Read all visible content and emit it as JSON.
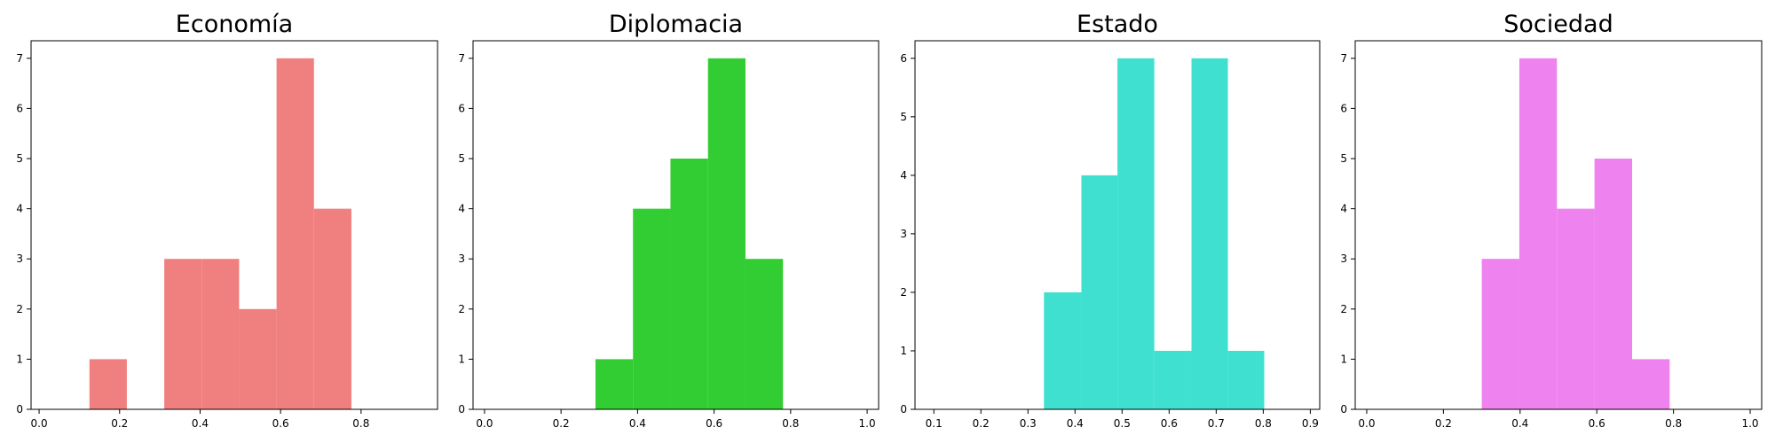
{
  "chart_data": [
    {
      "type": "histogram",
      "title": "Economía",
      "color": "#F08080",
      "xlim": [
        -0.02,
        0.99
      ],
      "ylim": [
        0,
        7.35
      ],
      "xticks": [
        0.0,
        0.2,
        0.4,
        0.6,
        0.8
      ],
      "xtick_labels": [
        "0.0",
        "0.2",
        "0.4",
        "0.6",
        "0.8"
      ],
      "yticks": [
        0,
        1,
        2,
        3,
        4,
        5,
        6,
        7
      ],
      "bins": [
        {
          "x0": 0.125,
          "x1": 0.218,
          "count": 1
        },
        {
          "x0": 0.311,
          "x1": 0.404,
          "count": 3
        },
        {
          "x0": 0.404,
          "x1": 0.497,
          "count": 3
        },
        {
          "x0": 0.497,
          "x1": 0.59,
          "count": 2
        },
        {
          "x0": 0.59,
          "x1": 0.683,
          "count": 7
        },
        {
          "x0": 0.683,
          "x1": 0.776,
          "count": 4
        }
      ]
    },
    {
      "type": "histogram",
      "title": "Diplomacia",
      "color": "#32CD32",
      "xlim": [
        -0.03,
        1.03
      ],
      "ylim": [
        0,
        7.35
      ],
      "xticks": [
        0.0,
        0.2,
        0.4,
        0.6,
        0.8,
        1.0
      ],
      "xtick_labels": [
        "0.0",
        "0.2",
        "0.4",
        "0.6",
        "0.8",
        "1.0"
      ],
      "yticks": [
        0,
        1,
        2,
        3,
        4,
        5,
        6,
        7
      ],
      "bins": [
        {
          "x0": 0.29,
          "x1": 0.388,
          "count": 1
        },
        {
          "x0": 0.388,
          "x1": 0.486,
          "count": 4
        },
        {
          "x0": 0.486,
          "x1": 0.584,
          "count": 5
        },
        {
          "x0": 0.584,
          "x1": 0.682,
          "count": 7
        },
        {
          "x0": 0.682,
          "x1": 0.78,
          "count": 3
        }
      ]
    },
    {
      "type": "histogram",
      "title": "Estado",
      "color": "#40E0D0",
      "xlim": [
        0.06,
        0.92
      ],
      "ylim": [
        0,
        6.3
      ],
      "xticks": [
        0.1,
        0.2,
        0.3,
        0.4,
        0.5,
        0.6,
        0.7,
        0.8,
        0.9
      ],
      "xtick_labels": [
        "0.1",
        "0.2",
        "0.3",
        "0.4",
        "0.5",
        "0.6",
        "0.7",
        "0.8",
        "0.9"
      ],
      "yticks": [
        0,
        1,
        2,
        3,
        4,
        5,
        6
      ],
      "bins": [
        {
          "x0": 0.334,
          "x1": 0.4135,
          "count": 2
        },
        {
          "x0": 0.4135,
          "x1": 0.4902,
          "count": 4
        },
        {
          "x0": 0.4902,
          "x1": 0.5685,
          "count": 6
        },
        {
          "x0": 0.5685,
          "x1": 0.6475,
          "count": 1
        },
        {
          "x0": 0.6475,
          "x1": 0.7249,
          "count": 6
        },
        {
          "x0": 0.7249,
          "x1": 0.8021,
          "count": 1
        }
      ]
    },
    {
      "type": "histogram",
      "title": "Sociedad",
      "color": "#EE82EE",
      "xlim": [
        -0.03,
        1.03
      ],
      "ylim": [
        0,
        7.35
      ],
      "xticks": [
        0.0,
        0.2,
        0.4,
        0.6,
        0.8,
        1.0
      ],
      "xtick_labels": [
        "0.0",
        "0.2",
        "0.4",
        "0.6",
        "0.8",
        "1.0"
      ],
      "yticks": [
        0,
        1,
        2,
        3,
        4,
        5,
        6,
        7
      ],
      "bins": [
        {
          "x0": 0.3,
          "x1": 0.398,
          "count": 3
        },
        {
          "x0": 0.398,
          "x1": 0.496,
          "count": 7
        },
        {
          "x0": 0.496,
          "x1": 0.594,
          "count": 4
        },
        {
          "x0": 0.594,
          "x1": 0.692,
          "count": 5
        },
        {
          "x0": 0.692,
          "x1": 0.79,
          "count": 1
        }
      ]
    }
  ]
}
